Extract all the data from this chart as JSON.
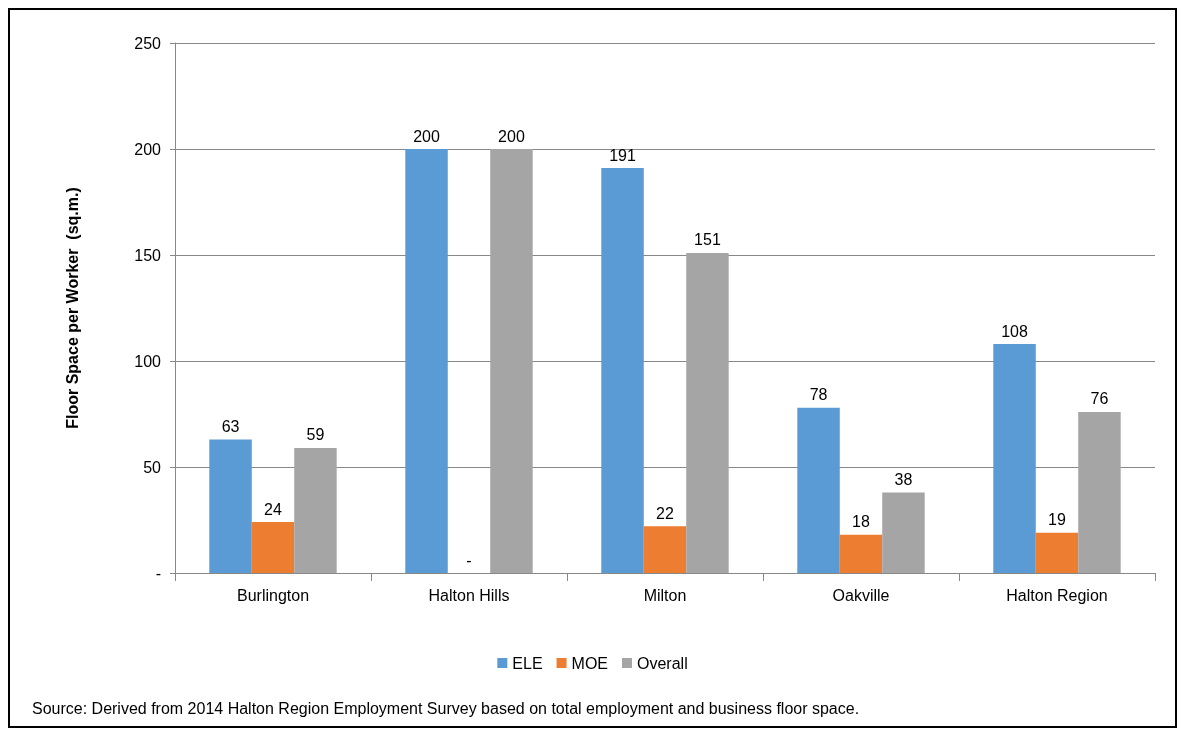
{
  "chart_data": {
    "type": "bar",
    "ylabel": "Floor Space per Worker  (sq.m.)",
    "categories": [
      "Burlington",
      "Halton Hills",
      "Milton",
      "Oakville",
      "Halton Region"
    ],
    "series": [
      {
        "name": "ELE",
        "color": "#5b9bd5",
        "values": [
          63,
          200,
          191,
          78,
          108
        ],
        "value_labels": [
          "63",
          "200",
          "191",
          "78",
          "108"
        ]
      },
      {
        "name": "MOE",
        "color": "#ed7d31",
        "values": [
          24,
          0,
          22,
          18,
          19
        ],
        "value_labels": [
          "24",
          "-",
          "22",
          "18",
          "19"
        ]
      },
      {
        "name": "Overall",
        "color": "#a5a5a5",
        "values": [
          59,
          200,
          151,
          38,
          76
        ],
        "value_labels": [
          "59",
          "200",
          "151",
          "38",
          "76"
        ]
      }
    ],
    "ylim": [
      0,
      250
    ],
    "yticks": [
      {
        "value": 0,
        "label": "-"
      },
      50,
      100,
      150,
      200,
      250
    ],
    "grid": "y",
    "legend": "bottom",
    "annotations": [
      "Source: Derived from 2014 Halton Region Employment Survey based on total employment and business floor space."
    ]
  }
}
